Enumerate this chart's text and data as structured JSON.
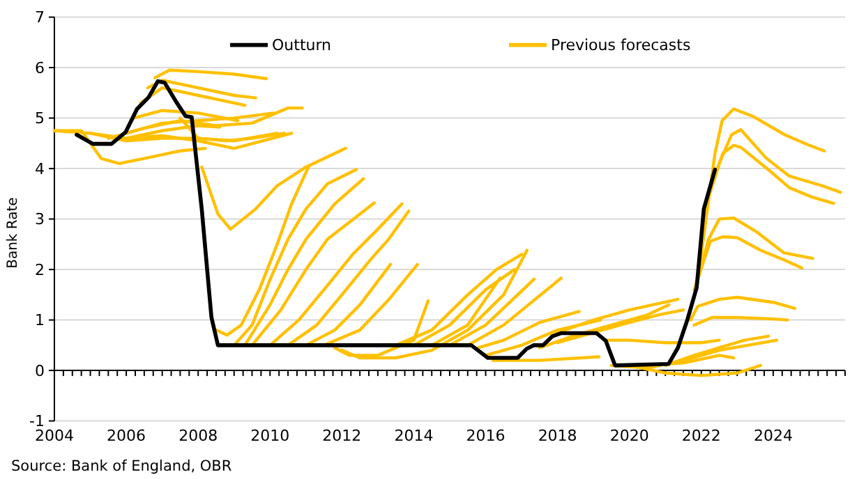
{
  "chart_data": {
    "type": "line",
    "ylabel": "Bank Rate",
    "annotations": [
      "Source: Bank of England, OBR"
    ],
    "xlim": [
      2004,
      2026
    ],
    "xticks": [
      2004,
      {
        "value": 2004.25,
        "label": null
      },
      {
        "value": 2004.5,
        "label": null
      },
      {
        "value": 2004.75,
        "label": null
      },
      {
        "value": 2005,
        "label": null
      },
      {
        "value": 2005.25,
        "label": null
      },
      {
        "value": 2005.5,
        "label": null
      },
      {
        "value": 2005.75,
        "label": null
      },
      2006,
      {
        "value": 2006.25,
        "label": null
      },
      {
        "value": 2006.5,
        "label": null
      },
      {
        "value": 2006.75,
        "label": null
      },
      {
        "value": 2007,
        "label": null
      },
      {
        "value": 2007.25,
        "label": null
      },
      {
        "value": 2007.5,
        "label": null
      },
      {
        "value": 2007.75,
        "label": null
      },
      2008,
      {
        "value": 2008.25,
        "label": null
      },
      {
        "value": 2008.5,
        "label": null
      },
      {
        "value": 2008.75,
        "label": null
      },
      {
        "value": 2009,
        "label": null
      },
      {
        "value": 2009.25,
        "label": null
      },
      {
        "value": 2009.5,
        "label": null
      },
      {
        "value": 2009.75,
        "label": null
      },
      2010,
      {
        "value": 2010.25,
        "label": null
      },
      {
        "value": 2010.5,
        "label": null
      },
      {
        "value": 2010.75,
        "label": null
      },
      {
        "value": 2011,
        "label": null
      },
      {
        "value": 2011.25,
        "label": null
      },
      {
        "value": 2011.5,
        "label": null
      },
      {
        "value": 2011.75,
        "label": null
      },
      2012,
      {
        "value": 2012.25,
        "label": null
      },
      {
        "value": 2012.5,
        "label": null
      },
      {
        "value": 2012.75,
        "label": null
      },
      {
        "value": 2013,
        "label": null
      },
      {
        "value": 2013.25,
        "label": null
      },
      {
        "value": 2013.5,
        "label": null
      },
      {
        "value": 2013.75,
        "label": null
      },
      2014,
      {
        "value": 2014.25,
        "label": null
      },
      {
        "value": 2014.5,
        "label": null
      },
      {
        "value": 2014.75,
        "label": null
      },
      {
        "value": 2015,
        "label": null
      },
      {
        "value": 2015.25,
        "label": null
      },
      {
        "value": 2015.5,
        "label": null
      },
      {
        "value": 2015.75,
        "label": null
      },
      2016,
      {
        "value": 2016.25,
        "label": null
      },
      {
        "value": 2016.5,
        "label": null
      },
      {
        "value": 2016.75,
        "label": null
      },
      {
        "value": 2017,
        "label": null
      },
      {
        "value": 2017.25,
        "label": null
      },
      {
        "value": 2017.5,
        "label": null
      },
      {
        "value": 2017.75,
        "label": null
      },
      2018,
      {
        "value": 2018.25,
        "label": null
      },
      {
        "value": 2018.5,
        "label": null
      },
      {
        "value": 2018.75,
        "label": null
      },
      {
        "value": 2019,
        "label": null
      },
      {
        "value": 2019.25,
        "label": null
      },
      {
        "value": 2019.5,
        "label": null
      },
      {
        "value": 2019.75,
        "label": null
      },
      2020,
      {
        "value": 2020.25,
        "label": null
      },
      {
        "value": 2020.5,
        "label": null
      },
      {
        "value": 2020.75,
        "label": null
      },
      {
        "value": 2021,
        "label": null
      },
      {
        "value": 2021.25,
        "label": null
      },
      {
        "value": 2021.5,
        "label": null
      },
      {
        "value": 2021.75,
        "label": null
      },
      2022,
      {
        "value": 2022.25,
        "label": null
      },
      {
        "value": 2022.5,
        "label": null
      },
      {
        "value": 2022.75,
        "label": null
      },
      {
        "value": 2023,
        "label": null
      },
      {
        "value": 2023.25,
        "label": null
      },
      {
        "value": 2023.5,
        "label": null
      },
      {
        "value": 2023.75,
        "label": null
      },
      2024,
      {
        "value": 2024.25,
        "label": null
      },
      {
        "value": 2024.5,
        "label": null
      },
      {
        "value": 2024.75,
        "label": null
      },
      {
        "value": 2025,
        "label": null
      },
      {
        "value": 2025.25,
        "label": null
      },
      {
        "value": 2025.5,
        "label": null
      },
      {
        "value": 2025.75,
        "label": null
      },
      {
        "value": 2026,
        "label": null
      }
    ],
    "ylim": [
      -1,
      7
    ],
    "yticks": [
      -1,
      0,
      1,
      2,
      3,
      4,
      5,
      6,
      7
    ],
    "grid": "y",
    "legend": "top",
    "marker": "none",
    "line_style": "solid",
    "series": [
      {
        "name": "Previous forecasts",
        "color": "#ffc000",
        "x": [
          2004,
          2004.75,
          2005.3,
          2005.8,
          2006.5,
          2007.5,
          2008.2
        ],
        "values": [
          4.75,
          4.75,
          4.2,
          4.1,
          4.2,
          4.35,
          4.4
        ]
      },
      {
        "color": "#ffc000",
        "x": [
          2004,
          2005,
          2006,
          2007,
          2008,
          2009,
          2010.6
        ],
        "values": [
          4.75,
          4.7,
          4.6,
          4.65,
          4.55,
          4.4,
          4.7
        ]
      },
      {
        "color": "#ffc000",
        "x": [
          2005,
          2006,
          2007,
          2008,
          2009,
          2010.2
        ],
        "values": [
          4.7,
          4.55,
          4.6,
          4.6,
          4.55,
          4.7
        ]
      },
      {
        "color": "#ffc000",
        "x": [
          2005.5,
          2006.5,
          2007.5,
          2008.5,
          2009.5,
          2010.5,
          2010.9
        ],
        "values": [
          4.6,
          4.8,
          4.95,
          4.85,
          4.9,
          5.2,
          5.2
        ]
      },
      {
        "color": "#ffc000",
        "x": [
          2006,
          2007,
          2008,
          2009,
          2010.1
        ],
        "values": [
          4.7,
          4.9,
          4.95,
          5.0,
          5.1
        ]
      },
      {
        "color": "#ffc000",
        "x": [
          2006.2,
          2007,
          2008,
          2009.1
        ],
        "values": [
          5.0,
          5.15,
          5.1,
          4.95
        ]
      },
      {
        "color": "#ffc000",
        "x": [
          2006.4,
          2007,
          2008,
          2009,
          2009.3
        ],
        "values": [
          5.3,
          5.6,
          5.45,
          5.3,
          5.25
        ]
      },
      {
        "color": "#ffc000",
        "x": [
          2006.6,
          2007,
          2008,
          2009,
          2009.6
        ],
        "values": [
          5.6,
          5.75,
          5.6,
          5.45,
          5.4
        ]
      },
      {
        "color": "#ffc000",
        "x": [
          2006.8,
          2007.2,
          2008,
          2009,
          2009.9
        ],
        "values": [
          5.8,
          5.95,
          5.92,
          5.87,
          5.78
        ]
      },
      {
        "color": "#ffc000",
        "x": [
          2006,
          2007,
          2008,
          2008.6
        ],
        "values": [
          4.6,
          4.75,
          4.85,
          4.82
        ]
      },
      {
        "color": "#ffc000",
        "x": [
          2007.5,
          2008,
          2008.8,
          2009.5,
          2010.4
        ],
        "values": [
          5.0,
          4.6,
          4.55,
          4.6,
          4.7
        ]
      },
      {
        "color": "#ffc000",
        "x": [
          2008.1,
          2008.55,
          2008.9,
          2009.6,
          2010.2,
          2011,
          2012.1
        ],
        "values": [
          4.03,
          3.1,
          2.8,
          3.2,
          3.66,
          4.03,
          4.4
        ]
      },
      {
        "color": "#ffc000",
        "x": [
          2008.5,
          2008.8,
          2009.2,
          2009.7,
          2010.2,
          2010.6,
          2011.08
        ],
        "values": [
          0.8,
          0.7,
          0.9,
          1.6,
          2.5,
          3.3,
          4.05
        ]
      },
      {
        "color": "#ffc000",
        "x": [
          2009,
          2009.5,
          2010,
          2010.5,
          2011,
          2011.6,
          2012.4
        ],
        "values": [
          0.5,
          0.9,
          1.8,
          2.6,
          3.2,
          3.7,
          3.98
        ]
      },
      {
        "color": "#ffc000",
        "x": [
          2009.3,
          2010,
          2010.5,
          2011,
          2011.8,
          2012.6
        ],
        "values": [
          0.5,
          1.3,
          2.0,
          2.6,
          3.3,
          3.8
        ]
      },
      {
        "color": "#ffc000",
        "x": [
          2009.5,
          2010.3,
          2011,
          2011.6,
          2012.9
        ],
        "values": [
          0.5,
          1.2,
          2.0,
          2.6,
          3.32
        ]
      },
      {
        "color": "#ffc000",
        "x": [
          2010,
          2010.8,
          2011.5,
          2012.3,
          2013,
          2013.67
        ],
        "values": [
          0.5,
          1.0,
          1.6,
          2.3,
          2.8,
          3.3
        ]
      },
      {
        "color": "#ffc000",
        "x": [
          2010.5,
          2011.3,
          2012,
          2012.8,
          2013.3,
          2013.86
        ],
        "values": [
          0.5,
          0.9,
          1.5,
          2.2,
          2.6,
          3.16
        ]
      },
      {
        "color": "#ffc000",
        "x": [
          2011,
          2011.8,
          2012.5,
          2013.35
        ],
        "values": [
          0.5,
          0.8,
          1.3,
          2.1
        ]
      },
      {
        "color": "#ffc000",
        "x": [
          2011.5,
          2012.5,
          2013.3,
          2014.1
        ],
        "values": [
          0.5,
          0.8,
          1.4,
          2.1
        ]
      },
      {
        "color": "#ffc000",
        "x": [
          2011.8,
          2012.2,
          2013,
          2014,
          2014.4
        ],
        "values": [
          0.45,
          0.3,
          0.3,
          0.6,
          1.38
        ]
      },
      {
        "color": "#ffc000",
        "x": [
          2012,
          2012.5,
          2013.5,
          2014.5,
          2015.5,
          2016.5,
          2017.15
        ],
        "values": [
          0.4,
          0.25,
          0.25,
          0.4,
          0.8,
          1.5,
          2.38
        ]
      },
      {
        "color": "#ffc000",
        "x": [
          2013.5,
          2014.5,
          2015.5,
          2016.3,
          2017
        ],
        "values": [
          0.5,
          0.8,
          1.5,
          2.0,
          2.3
        ]
      },
      {
        "color": "#ffc000",
        "x": [
          2014,
          2015,
          2016,
          2016.8
        ],
        "values": [
          0.5,
          0.9,
          1.6,
          2.0
        ]
      },
      {
        "color": "#ffc000",
        "x": [
          2014.5,
          2015.5,
          2016.4
        ],
        "values": [
          0.5,
          0.9,
          1.83
        ]
      },
      {
        "color": "#ffc000",
        "x": [
          2015,
          2016,
          2017.35
        ],
        "values": [
          0.5,
          0.9,
          1.81
        ]
      },
      {
        "color": "#ffc000",
        "x": [
          2015.5,
          2016.5,
          2018.1
        ],
        "values": [
          0.5,
          0.9,
          1.83
        ]
      },
      {
        "color": "#ffc000",
        "x": [
          2015.8,
          2016.5,
          2017.5,
          2018.6
        ],
        "values": [
          0.45,
          0.6,
          0.95,
          1.17
        ]
      },
      {
        "color": "#ffc000",
        "x": [
          2016,
          2017,
          2018,
          2019.2
        ],
        "values": [
          0.3,
          0.5,
          0.8,
          1.0
        ]
      },
      {
        "color": "#ffc000",
        "x": [
          2016.2,
          2017.5,
          2019.15
        ],
        "values": [
          0.2,
          0.2,
          0.27
        ]
      },
      {
        "color": "#ffc000",
        "x": [
          2017.5,
          2018.5,
          2019.5,
          2020.5,
          2021.1
        ],
        "values": [
          0.45,
          0.7,
          0.9,
          1.1,
          1.3
        ]
      },
      {
        "color": "#ffc000",
        "x": [
          2018,
          2019,
          2020,
          2021.35
        ],
        "values": [
          0.75,
          1.0,
          1.2,
          1.41
        ]
      },
      {
        "color": "#ffc000",
        "x": [
          2018,
          2019,
          2020,
          2020.8,
          2021.5
        ],
        "values": [
          0.55,
          0.75,
          0.95,
          1.1,
          1.2
        ]
      },
      {
        "color": "#ffc000",
        "x": [
          2019.3,
          2020,
          2021,
          2022,
          2022.5
        ],
        "values": [
          0.6,
          0.6,
          0.55,
          0.55,
          0.6
        ]
      },
      {
        "color": "#ffc000",
        "x": [
          2019.5,
          2020.5,
          2021.5,
          2022.5,
          2024.1
        ],
        "values": [
          0.1,
          0.05,
          0.2,
          0.4,
          0.6
        ]
      },
      {
        "color": "#ffc000",
        "x": [
          2020,
          2021,
          2022,
          2023,
          2023.65
        ],
        "values": [
          0.1,
          -0.05,
          -0.1,
          -0.05,
          0.1
        ]
      },
      {
        "color": "#ffc000",
        "x": [
          2020.5,
          2021.5,
          2022.5,
          2022.9
        ],
        "values": [
          0.1,
          0.15,
          0.3,
          0.25
        ]
      },
      {
        "color": "#ffc000",
        "x": [
          2021,
          2021.8,
          2022.5,
          2023.2,
          2023.87
        ],
        "values": [
          0.1,
          0.3,
          0.45,
          0.6,
          0.68
        ]
      },
      {
        "color": "#ffc000",
        "x": [
          2021.7,
          2021.9,
          2022.5,
          2023,
          2024,
          2024.6
        ],
        "values": [
          1.0,
          1.27,
          1.41,
          1.45,
          1.35,
          1.23
        ]
      },
      {
        "color": "#ffc000",
        "x": [
          2021.8,
          2022.3,
          2023,
          2024,
          2024.4
        ],
        "values": [
          0.9,
          1.05,
          1.05,
          1.02,
          1.0
        ]
      },
      {
        "color": "#ffc000",
        "x": [
          2021.8,
          2022.25,
          2022.6,
          2023,
          2023.65,
          2024.3,
          2024.8
        ],
        "values": [
          1.6,
          2.56,
          2.65,
          2.63,
          2.38,
          2.19,
          2.03
        ]
      },
      {
        "color": "#ffc000",
        "x": [
          2021.85,
          2022.2,
          2022.5,
          2022.9,
          2023.55,
          2024.3,
          2025.1
        ],
        "values": [
          1.64,
          2.6,
          3.0,
          3.02,
          2.74,
          2.33,
          2.22
        ]
      },
      {
        "color": "#ffc000",
        "x": [
          2021.87,
          2022.38,
          2022.58,
          2022.9,
          2023.42,
          2024.32,
          2024.97,
          2025.42
        ],
        "values": [
          1.64,
          4.3,
          4.95,
          5.18,
          5.04,
          4.67,
          4.47,
          4.35
        ]
      },
      {
        "color": "#ffc000",
        "x": [
          2022.1,
          2022.51,
          2022.84,
          2023.1,
          2023.8,
          2024.45,
          2025.36,
          2025.87
        ],
        "values": [
          3.2,
          4.12,
          4.67,
          4.77,
          4.21,
          3.85,
          3.66,
          3.53
        ]
      },
      {
        "color": "#ffc000",
        "x": [
          2022.2,
          2022.6,
          2022.9,
          2023.1,
          2023.93,
          2024.45,
          2025.1,
          2025.68
        ],
        "values": [
          3.5,
          4.3,
          4.46,
          4.42,
          3.94,
          3.62,
          3.43,
          3.31
        ]
      },
      {
        "name": "Outturn",
        "color": "#000000",
        "x": [
          2004.62,
          2005.07,
          2005.59,
          2005.98,
          2006.3,
          2006.62,
          2006.88,
          2007.07,
          2007.39,
          2007.65,
          2007.82,
          2008.1,
          2008.37,
          2008.55,
          2015.6,
          2016.06,
          2016.89,
          2017.14,
          2017.34,
          2017.6,
          2017.86,
          2018.11,
          2019.08,
          2019.34,
          2019.6,
          2021.09,
          2021.35,
          2021.61,
          2021.87,
          2022.07,
          2022.38
        ],
        "values": [
          4.67,
          4.49,
          4.49,
          4.72,
          5.18,
          5.41,
          5.73,
          5.7,
          5.32,
          5.04,
          5.02,
          3.2,
          1.05,
          0.5,
          0.5,
          0.25,
          0.25,
          0.43,
          0.5,
          0.5,
          0.68,
          0.74,
          0.74,
          0.59,
          0.1,
          0.13,
          0.45,
          1.0,
          1.64,
          3.2,
          3.98
        ]
      }
    ]
  }
}
